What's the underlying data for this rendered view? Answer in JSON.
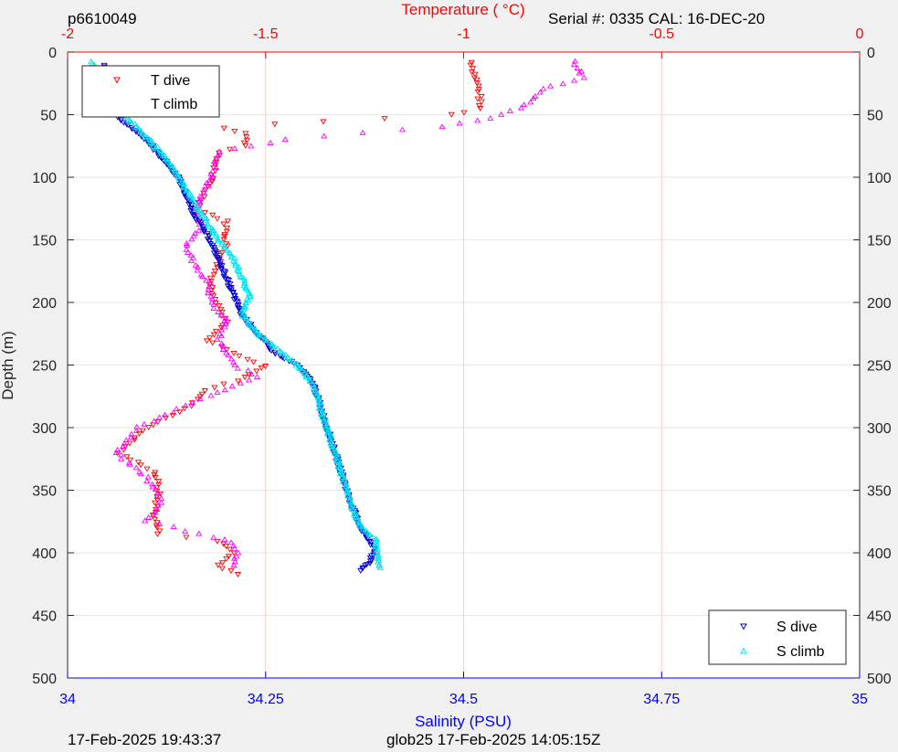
{
  "header": {
    "id": "p6610049",
    "serial": "Serial #: 0335  CAL: 16-DEC-20"
  },
  "footer": {
    "left": "17-Feb-2025 19:43:37",
    "right": "glob25 17-Feb-2025 14:05:15Z"
  },
  "colors": {
    "t_dive": "#ff0000",
    "t_climb": "#ff00ff",
    "s_dive": "#0000cc",
    "s_climb": "#00e5ee",
    "temperature_axis": "#ff0000",
    "salinity_axis": "#0000ff"
  },
  "chart_data": {
    "type": "scatter",
    "y_axis": {
      "label": "Depth (m)",
      "range": [
        0,
        500
      ],
      "reversed": true,
      "ticks": [
        0,
        50,
        100,
        150,
        200,
        250,
        300,
        350,
        400,
        450,
        500
      ]
    },
    "top_axis": {
      "label": "Temperature (    °C)",
      "range": [
        -2,
        0
      ],
      "ticks": [
        -2,
        -1.5,
        -1,
        -0.5,
        0
      ],
      "tick_labels": [
        "-2",
        "-1.5",
        "-1",
        "-0.5",
        "0"
      ]
    },
    "bottom_axis": {
      "label": "Salinity (PSU)",
      "range": [
        34,
        35
      ],
      "ticks": [
        34,
        34.25,
        34.5,
        34.75,
        35
      ],
      "tick_labels": [
        "34",
        "34.25",
        "34.5",
        "34.75",
        "35"
      ]
    },
    "grid": "vertical, at top-axis ticks",
    "legends": [
      {
        "placement": "top-left",
        "entries": [
          "T dive",
          "T climb"
        ]
      },
      {
        "placement": "bottom-right",
        "entries": [
          "S dive",
          "S climb"
        ]
      }
    ],
    "series": [
      {
        "name": "T dive",
        "axis": "temperature",
        "marker": "triangle-down",
        "profile": [
          [
            -0.98,
            8
          ],
          [
            -0.97,
            20
          ],
          [
            -0.96,
            32
          ],
          [
            -0.96,
            45
          ],
          [
            -1.03,
            50
          ],
          [
            -1.2,
            53
          ],
          [
            -1.35,
            55
          ],
          [
            -1.6,
            60
          ],
          [
            -1.55,
            65
          ],
          [
            -1.55,
            75
          ],
          [
            -1.62,
            80
          ],
          [
            -1.63,
            95
          ],
          [
            -1.65,
            110
          ],
          [
            -1.67,
            125
          ],
          [
            -1.6,
            135
          ],
          [
            -1.6,
            155
          ],
          [
            -1.62,
            170
          ],
          [
            -1.64,
            185
          ],
          [
            -1.62,
            200
          ],
          [
            -1.6,
            215
          ],
          [
            -1.65,
            230
          ],
          [
            -1.55,
            245
          ],
          [
            -1.5,
            250
          ],
          [
            -1.55,
            260
          ],
          [
            -1.65,
            270
          ],
          [
            -1.7,
            285
          ],
          [
            -1.8,
            300
          ],
          [
            -1.87,
            320
          ],
          [
            -1.78,
            335
          ],
          [
            -1.77,
            350
          ],
          [
            -1.78,
            370
          ],
          [
            -1.77,
            385
          ],
          [
            -1.62,
            390
          ],
          [
            -1.58,
            400
          ],
          [
            -1.62,
            410
          ],
          [
            -1.57,
            417
          ]
        ]
      },
      {
        "name": "T climb",
        "axis": "temperature",
        "marker": "triangle-up",
        "profile": [
          [
            -0.72,
            8
          ],
          [
            -0.7,
            20
          ],
          [
            -0.8,
            30
          ],
          [
            -0.85,
            45
          ],
          [
            -0.96,
            55
          ],
          [
            -1.05,
            60
          ],
          [
            -1.35,
            67
          ],
          [
            -1.45,
            70
          ],
          [
            -1.62,
            80
          ],
          [
            -1.63,
            95
          ],
          [
            -1.65,
            110
          ],
          [
            -1.68,
            125
          ],
          [
            -1.66,
            140
          ],
          [
            -1.7,
            155
          ],
          [
            -1.68,
            170
          ],
          [
            -1.64,
            185
          ],
          [
            -1.64,
            200
          ],
          [
            -1.6,
            215
          ],
          [
            -1.62,
            230
          ],
          [
            -1.58,
            250
          ],
          [
            -1.52,
            260
          ],
          [
            -1.6,
            270
          ],
          [
            -1.72,
            285
          ],
          [
            -1.82,
            300
          ],
          [
            -1.88,
            320
          ],
          [
            -1.8,
            340
          ],
          [
            -1.76,
            360
          ],
          [
            -1.8,
            375
          ],
          [
            -1.6,
            390
          ],
          [
            -1.57,
            400
          ],
          [
            -1.58,
            410
          ]
        ]
      },
      {
        "name": "S dive",
        "axis": "salinity",
        "marker": "triangle-down",
        "profile": [
          [
            34.045,
            10
          ],
          [
            34.05,
            30
          ],
          [
            34.055,
            48
          ],
          [
            34.08,
            60
          ],
          [
            34.1,
            70
          ],
          [
            34.12,
            85
          ],
          [
            34.14,
            100
          ],
          [
            34.15,
            115
          ],
          [
            34.16,
            130
          ],
          [
            34.18,
            150
          ],
          [
            34.19,
            165
          ],
          [
            34.2,
            180
          ],
          [
            34.21,
            195
          ],
          [
            34.22,
            210
          ],
          [
            34.24,
            225
          ],
          [
            34.26,
            240
          ],
          [
            34.29,
            250
          ],
          [
            34.31,
            265
          ],
          [
            34.32,
            285
          ],
          [
            34.33,
            305
          ],
          [
            34.34,
            325
          ],
          [
            34.35,
            345
          ],
          [
            34.36,
            365
          ],
          [
            34.37,
            380
          ],
          [
            34.38,
            390
          ],
          [
            34.39,
            397
          ],
          [
            34.38,
            408
          ],
          [
            34.37,
            414
          ]
        ]
      },
      {
        "name": "S climb",
        "axis": "salinity",
        "marker": "triangle-up",
        "profile": [
          [
            34.03,
            8
          ],
          [
            34.045,
            20
          ],
          [
            34.06,
            35
          ],
          [
            34.07,
            50
          ],
          [
            34.09,
            62
          ],
          [
            34.11,
            75
          ],
          [
            34.13,
            90
          ],
          [
            34.15,
            110
          ],
          [
            34.17,
            130
          ],
          [
            34.19,
            150
          ],
          [
            34.21,
            165
          ],
          [
            34.22,
            180
          ],
          [
            34.23,
            195
          ],
          [
            34.22,
            210
          ],
          [
            34.24,
            225
          ],
          [
            34.27,
            240
          ],
          [
            34.29,
            250
          ],
          [
            34.31,
            265
          ],
          [
            34.32,
            285
          ],
          [
            34.33,
            305
          ],
          [
            34.34,
            325
          ],
          [
            34.35,
            345
          ],
          [
            34.36,
            365
          ],
          [
            34.37,
            380
          ],
          [
            34.39,
            390
          ],
          [
            34.39,
            400
          ],
          [
            34.395,
            412
          ]
        ]
      }
    ]
  }
}
